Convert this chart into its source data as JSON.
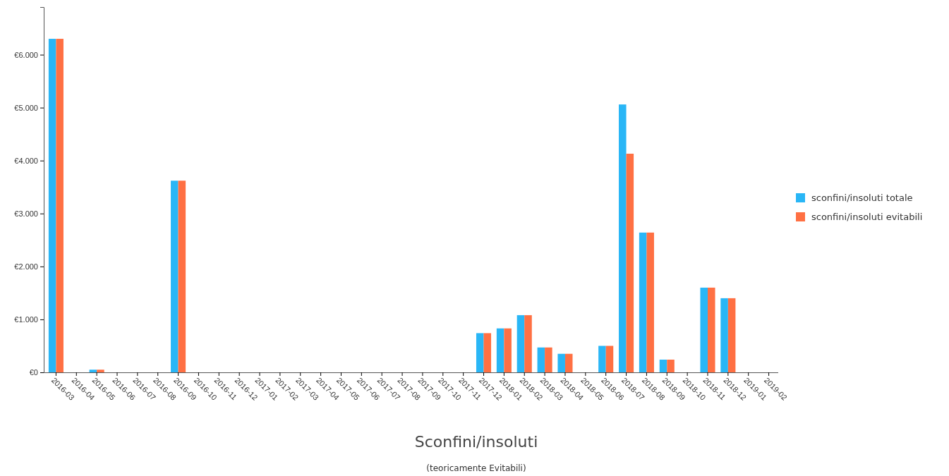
{
  "chart_data": {
    "type": "bar",
    "title": "Sconfini/insoluti",
    "subtitle": "(teoricamente Evitabili)",
    "categories": [
      "2016-03",
      "2016-04",
      "2016-05",
      "2016-06",
      "2016-07",
      "2016-08",
      "2016-09",
      "2016-10",
      "2016-11",
      "2016-12",
      "2017-01",
      "2017-02",
      "2017-03",
      "2017-04",
      "2017-05",
      "2017-06",
      "2017-07",
      "2017-08",
      "2017-09",
      "2017-10",
      "2017-11",
      "2017-12",
      "2018-01",
      "2018-02",
      "2018-03",
      "2018-04",
      "2018-05",
      "2018-06",
      "2018-07",
      "2018-08",
      "2018-09",
      "2018-10",
      "2018-11",
      "2018-12",
      "2019-01",
      "2019-02"
    ],
    "series": [
      {
        "name": "sconfini/insoluti totale",
        "color": "#29b6f6",
        "values": [
          6300,
          0,
          50,
          0,
          0,
          0,
          3620,
          0,
          0,
          0,
          0,
          0,
          0,
          0,
          0,
          0,
          0,
          0,
          0,
          0,
          0,
          740,
          830,
          1080,
          470,
          350,
          0,
          500,
          5060,
          2640,
          240,
          0,
          1600,
          1400,
          0,
          0
        ]
      },
      {
        "name": "sconfini/insoluti evitabili",
        "color": "#ff7043",
        "values": [
          6300,
          0,
          50,
          0,
          0,
          0,
          3620,
          0,
          0,
          0,
          0,
          0,
          0,
          0,
          0,
          0,
          0,
          0,
          0,
          0,
          0,
          740,
          830,
          1080,
          470,
          350,
          0,
          500,
          4130,
          2640,
          240,
          0,
          1600,
          1400,
          0,
          0
        ]
      }
    ],
    "ylim": [
      0,
      6900
    ],
    "yticks": [
      {
        "value": 0,
        "label": "€0"
      },
      {
        "value": 1000,
        "label": "€1.000"
      },
      {
        "value": 2000,
        "label": "€2.000"
      },
      {
        "value": 3000,
        "label": "€3.000"
      },
      {
        "value": 4000,
        "label": "€4.000"
      },
      {
        "value": 5000,
        "label": "€5.000"
      },
      {
        "value": 6000,
        "label": "€6.000"
      }
    ],
    "grid": false,
    "legend": "right"
  }
}
